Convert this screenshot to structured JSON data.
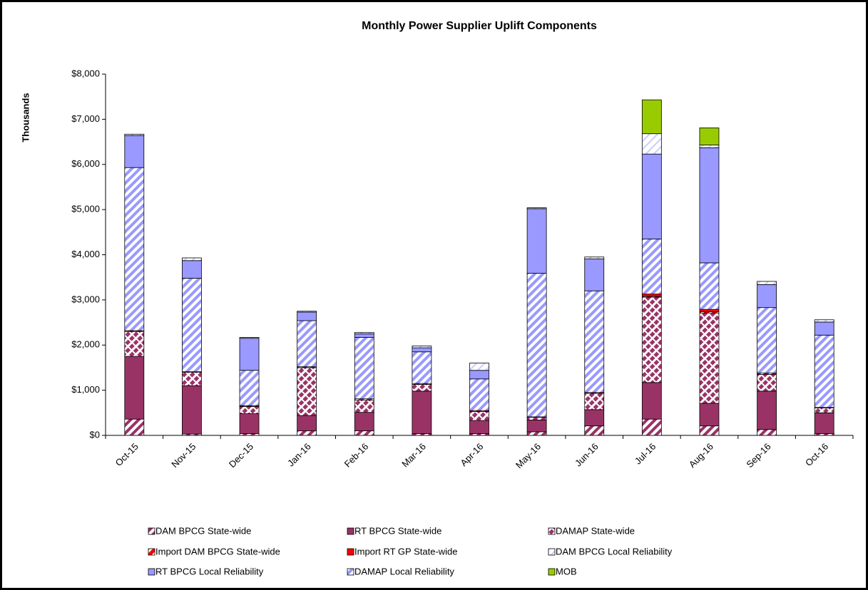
{
  "chart_data": {
    "type": "stacked_bar",
    "title": "Monthly Power Supplier Uplift Components",
    "ylabel": "Thousands",
    "categories": [
      "Oct-15",
      "Nov-15",
      "Dec-15",
      "Jan-16",
      "Feb-16",
      "Mar-16",
      "Apr-16",
      "May-16",
      "Jun-16",
      "Jul-16",
      "Aug-16",
      "Sep-16",
      "Oct-16"
    ],
    "ylim": [
      0,
      8000
    ],
    "yticks": [
      {
        "value": 0,
        "label": "$0"
      },
      {
        "value": 1000,
        "label": "$1,000"
      },
      {
        "value": 2000,
        "label": "$2,000"
      },
      {
        "value": 3000,
        "label": "$3,000"
      },
      {
        "value": 4000,
        "label": "$4,000"
      },
      {
        "value": 5000,
        "label": "$5,000"
      },
      {
        "value": 6000,
        "label": "$6,000"
      },
      {
        "value": 7000,
        "label": "$7,000"
      },
      {
        "value": 8000,
        "label": "$8,000"
      }
    ],
    "grid": false,
    "legend": "bottom",
    "series": [
      {
        "name": "DAM BPCG State-wide",
        "color": "#993366",
        "values": [
          360,
          30,
          40,
          100,
          100,
          40,
          40,
          80,
          210,
          360,
          210,
          130,
          40
        ]
      },
      {
        "name": "RT BPCG State-wide",
        "color": "#993366",
        "values": [
          1390,
          1070,
          440,
          340,
          410,
          940,
          290,
          260,
          360,
          810,
          500,
          850,
          460
        ]
      },
      {
        "name": "DAMAP State-wide",
        "color": "#993366",
        "values": [
          550,
          300,
          160,
          1060,
          270,
          150,
          200,
          60,
          360,
          1890,
          2000,
          370,
          110
        ]
      },
      {
        "name": "Import DAM BPCG State-wide",
        "color": "#ff0000",
        "values": [
          20,
          10,
          20,
          20,
          30,
          20,
          20,
          10,
          20,
          20,
          30,
          30,
          10
        ]
      },
      {
        "name": "Import RT GP State-wide",
        "color": "#ff0000",
        "values": [
          0,
          0,
          0,
          0,
          0,
          0,
          0,
          0,
          0,
          50,
          50,
          0,
          0
        ]
      },
      {
        "name": "DAM BPCG Local Reliability",
        "color": "#ccccff",
        "values": [
          30,
          60,
          20,
          20,
          30,
          40,
          160,
          20,
          40,
          450,
          60,
          70,
          50
        ]
      },
      {
        "name": "RT BPCG Local Reliability",
        "color": "#9999ff",
        "values": [
          710,
          390,
          710,
          190,
          80,
          90,
          190,
          1430,
          710,
          1880,
          2550,
          510,
          290
        ]
      },
      {
        "name": "DAMAP Local Reliability",
        "color": "#9999ff",
        "values": [
          3610,
          2070,
          780,
          1020,
          1360,
          700,
          700,
          3180,
          2250,
          1220,
          1030,
          1450,
          1600
        ]
      },
      {
        "name": "MOB",
        "color": "#99cc00",
        "values": [
          0,
          0,
          0,
          0,
          0,
          0,
          0,
          0,
          0,
          750,
          380,
          0,
          0
        ]
      }
    ]
  }
}
